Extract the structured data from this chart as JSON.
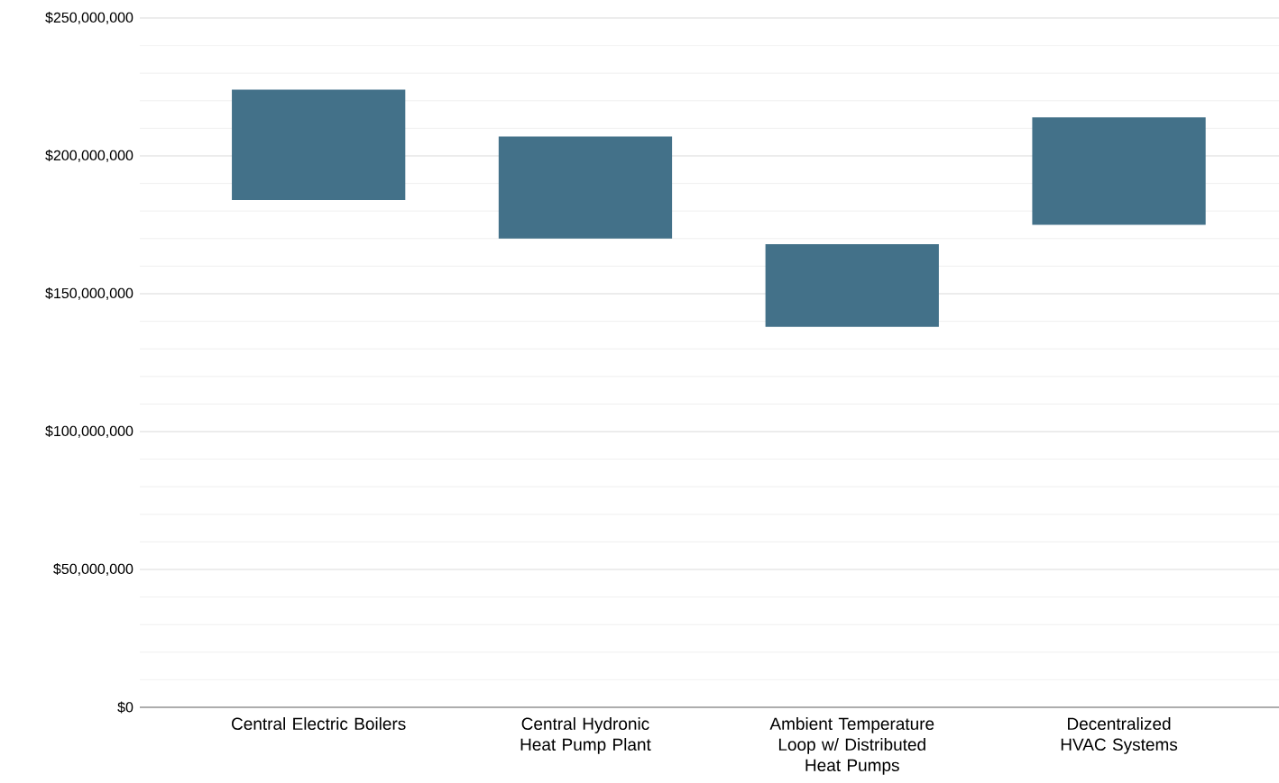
{
  "chart_data": {
    "type": "bar",
    "categories": [
      "Central Electric Boilers",
      "Central Hydronic Heat Pump Plant",
      "Ambient Temperature Loop w/ Distributed Heat Pumps",
      "Decentralized HVAC Systems"
    ],
    "base": [
      184000000,
      170000000,
      138000000,
      175000000
    ],
    "values": [
      40000000,
      37000000,
      30000000,
      39000000
    ],
    "color": "#437189",
    "ylim": [
      0,
      250000000
    ],
    "yticks": [
      {
        "value": 0,
        "label": "$0"
      },
      {
        "value": 50000000,
        "label": "$50,000,000"
      },
      {
        "value": 100000000,
        "label": "$100,000,000"
      },
      {
        "value": 150000000,
        "label": "$150,000,000"
      },
      {
        "value": 200000000,
        "label": "$200,000,000"
      },
      {
        "value": 250000000,
        "label": "$250,000,000"
      }
    ],
    "grid": "y"
  }
}
